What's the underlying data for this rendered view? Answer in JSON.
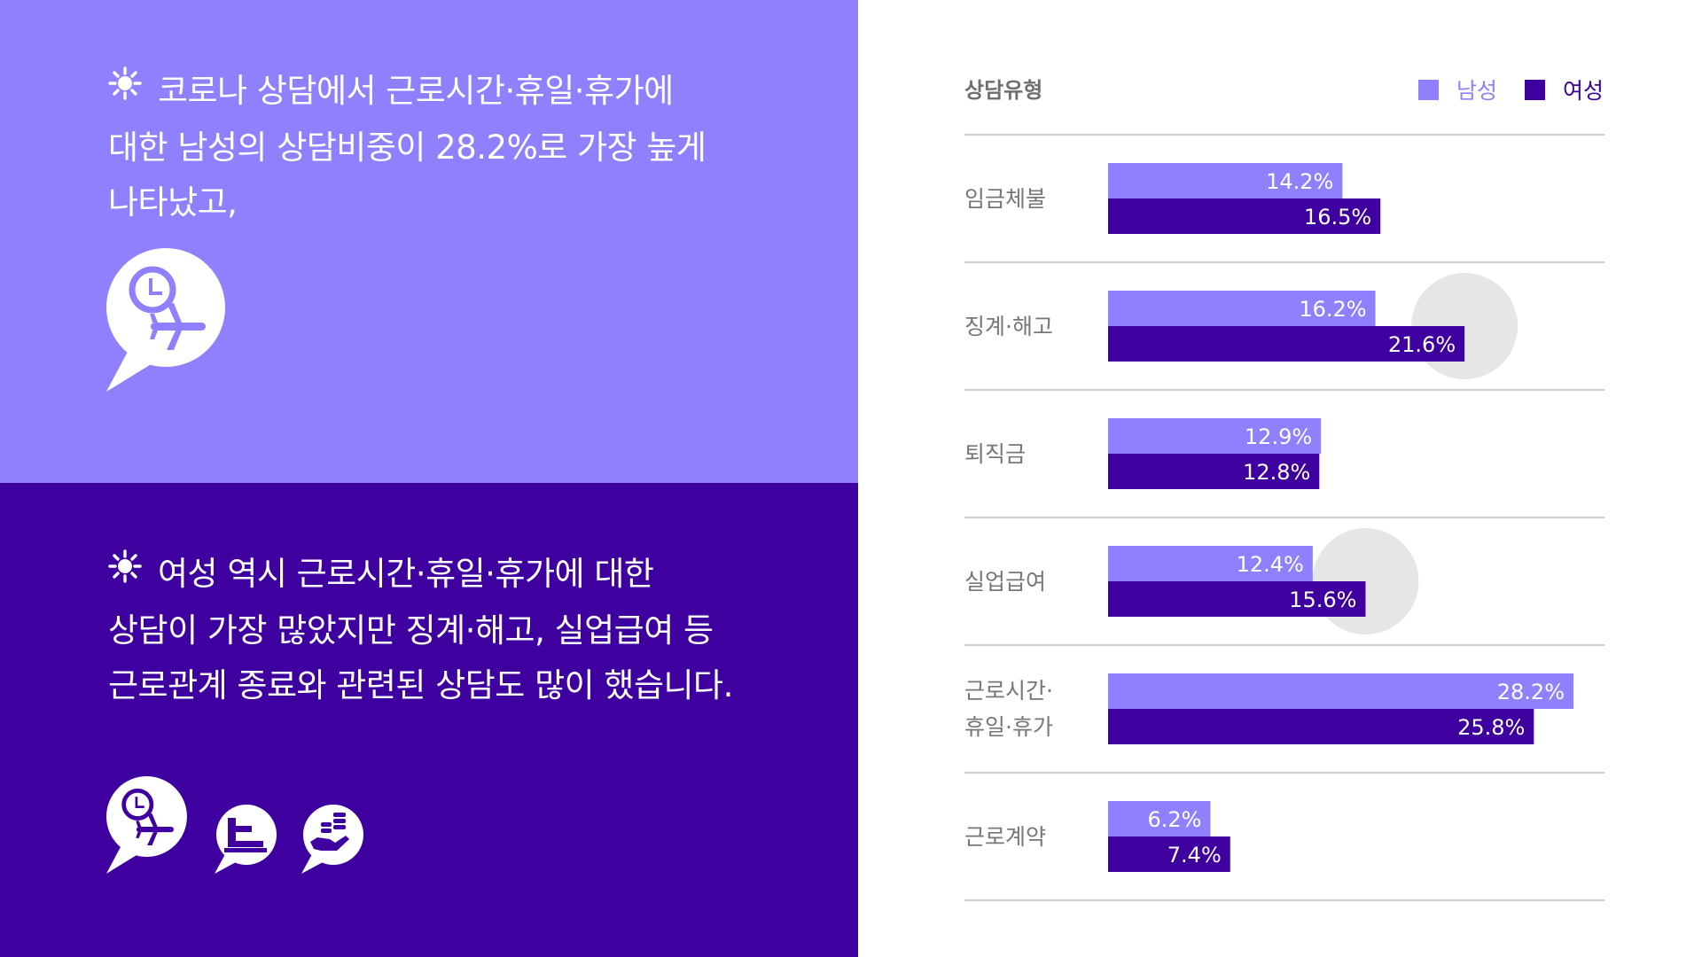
{
  "left_panel": {
    "top_text": [
      "코로나 상담에서 근로시간·휴일·휴가에",
      "대한 남성의 상담비중이 28.2%로 가장 높게",
      "나타났고,"
    ],
    "bottom_text": [
      "여성 역시 근로시간·휴일·휴가에 대한",
      "상담이 가장 많았지만 징계·해고, 실업급여 등",
      "근로관계 종료와 관련된 상담도 많이 했습니다."
    ],
    "icons": [
      "sun-bullet-icon",
      "clock-plane-speech-icon",
      "gavel-speech-icon",
      "hand-coins-speech-icon"
    ]
  },
  "colors": {
    "top_panel": "#8f80fe",
    "bottom_panel": "#3e009e",
    "male": "#8f80fe",
    "female": "#3e009e",
    "highlight": "#e6e6e6"
  },
  "chart_data": {
    "type": "bar",
    "orientation": "horizontal",
    "category_header": "상담유형",
    "categories": [
      [
        "임금체불"
      ],
      [
        "징계·해고"
      ],
      [
        "퇴직금"
      ],
      [
        "실업급여"
      ],
      [
        "근로시간·",
        "휴일·휴가"
      ],
      [
        "근로계약"
      ]
    ],
    "series": [
      {
        "name": "남성",
        "values": [
          14.2,
          16.2,
          12.9,
          12.4,
          28.2,
          6.2
        ],
        "labels": [
          "14.2%",
          "16.2%",
          "12.9%",
          "12.4%",
          "28.2%",
          "6.2%"
        ]
      },
      {
        "name": "여성",
        "values": [
          16.5,
          21.6,
          12.8,
          15.6,
          25.8,
          7.4
        ],
        "labels": [
          "16.5%",
          "21.6%",
          "12.8%",
          "15.6%",
          "25.8%",
          "7.4%"
        ]
      }
    ],
    "highlighted": [
      {
        "category": "징계·해고",
        "series": "여성"
      },
      {
        "category": "실업급여",
        "series": "여성"
      }
    ],
    "xlim": [
      0,
      28.2
    ],
    "legend_position": "top-right",
    "grid": false
  }
}
